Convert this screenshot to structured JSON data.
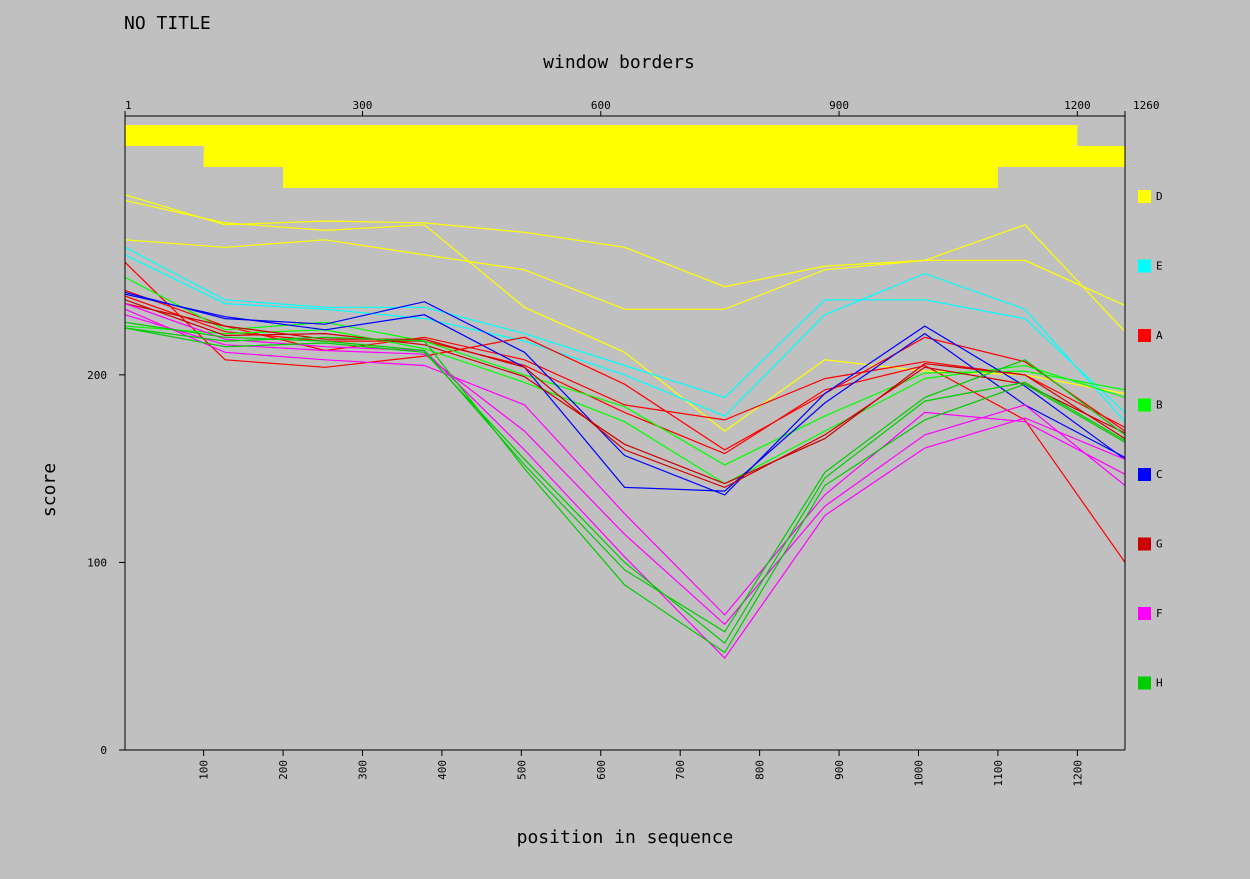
{
  "chart_data": {
    "type": "line",
    "title": "NO TITLE",
    "top_label": "window borders",
    "xlabel": "position in sequence",
    "ylabel": "score",
    "xlim": [
      1,
      1260
    ],
    "ylim": [
      0,
      338
    ],
    "x_ticks": [
      100,
      200,
      300,
      400,
      500,
      600,
      700,
      800,
      900,
      1000,
      1100,
      1200
    ],
    "y_ticks": [
      0,
      100,
      200
    ],
    "top_ticks": [
      1,
      300,
      600,
      900,
      1200,
      1260
    ],
    "window_borders": {
      "color": "#ffff00",
      "rows": [
        [
          [
            1,
            1200
          ]
        ],
        [
          [
            100,
            1260
          ]
        ],
        [
          [
            200,
            1100
          ]
        ]
      ]
    },
    "x": [
      1,
      127,
      253,
      378,
      504,
      630,
      756,
      882,
      1008,
      1134,
      1260
    ],
    "legend": [
      {
        "label": "D",
        "color": "#ffff00"
      },
      {
        "label": "E",
        "color": "#00ffff"
      },
      {
        "label": "A",
        "color": "#ff0000"
      },
      {
        "label": "B",
        "color": "#00ff00"
      },
      {
        "label": "C",
        "color": "#0000ff"
      },
      {
        "label": "G",
        "color": "#cc0000"
      },
      {
        "label": "F",
        "color": "#ff00ff"
      },
      {
        "label": "H",
        "color": "#00cc00"
      }
    ],
    "series": [
      {
        "group": "D",
        "color": "#ffff00",
        "values": [
          296,
          280,
          282,
          281,
          276,
          268,
          247,
          258,
          261,
          261,
          237
        ]
      },
      {
        "group": "D",
        "color": "#ffff00",
        "values": [
          272,
          268,
          272,
          264,
          256,
          235,
          235,
          256,
          261,
          280,
          223
        ]
      },
      {
        "group": "D",
        "color": "#ffff00",
        "values": [
          293,
          281,
          277,
          280,
          236,
          212,
          170,
          208,
          202,
          200,
          190
        ]
      },
      {
        "group": "E",
        "color": "#00ffff",
        "values": [
          268,
          240,
          236,
          236,
          222,
          205,
          188,
          240,
          240,
          230,
          180
        ]
      },
      {
        "group": "E",
        "color": "#00ffff",
        "values": [
          264,
          238,
          235,
          230,
          218,
          200,
          178,
          232,
          254,
          235,
          175
        ]
      },
      {
        "group": "A",
        "color": "#ff0000",
        "values": [
          260,
          208,
          204,
          210,
          220,
          195,
          160,
          190,
          220,
          207,
          170
        ]
      },
      {
        "group": "A",
        "color": "#ff0000",
        "values": [
          245,
          226,
          213,
          220,
          208,
          184,
          176,
          198,
          207,
          200,
          172
        ]
      },
      {
        "group": "A",
        "color": "#ff0000",
        "values": [
          242,
          223,
          218,
          218,
          205,
          180,
          158,
          192,
          205,
          176,
          100
        ]
      },
      {
        "group": "B",
        "color": "#00ff00",
        "values": [
          252,
          224,
          228,
          218,
          200,
          183,
          152,
          178,
          201,
          202,
          192
        ]
      },
      {
        "group": "B",
        "color": "#00ff00",
        "values": [
          226,
          222,
          224,
          214,
          196,
          175,
          142,
          170,
          198,
          205,
          188
        ]
      },
      {
        "group": "C",
        "color": "#0000ff",
        "values": [
          244,
          230,
          227,
          239,
          212,
          157,
          136,
          190,
          226,
          194,
          155
        ]
      },
      {
        "group": "C",
        "color": "#0000ff",
        "values": [
          243,
          231,
          224,
          232,
          204,
          140,
          138,
          185,
          222,
          184,
          156
        ]
      },
      {
        "group": "G",
        "color": "#cc0000",
        "values": [
          240,
          221,
          222,
          216,
          199,
          163,
          142,
          166,
          206,
          200,
          166
        ]
      },
      {
        "group": "G",
        "color": "#cc0000",
        "values": [
          238,
          226,
          219,
          219,
          204,
          160,
          140,
          168,
          204,
          195,
          169
        ]
      },
      {
        "group": "F",
        "color": "#ff00ff",
        "values": [
          235,
          212,
          208,
          205,
          184,
          126,
          72,
          136,
          180,
          175,
          147
        ]
      },
      {
        "group": "F",
        "color": "#ff00ff",
        "values": [
          232,
          216,
          213,
          211,
          170,
          115,
          67,
          130,
          168,
          184,
          141
        ]
      },
      {
        "group": "F",
        "color": "#ff00ff",
        "values": [
          238,
          219,
          215,
          213,
          160,
          103,
          49,
          125,
          161,
          177,
          155
        ]
      },
      {
        "group": "H",
        "color": "#00cc00",
        "values": [
          225,
          218,
          220,
          218,
          150,
          88,
          52,
          141,
          176,
          195,
          164
        ]
      },
      {
        "group": "H",
        "color": "#00cc00",
        "values": [
          225,
          215,
          217,
          212,
          155,
          100,
          57,
          145,
          186,
          196,
          165
        ]
      },
      {
        "group": "H",
        "color": "#00cc00",
        "values": [
          228,
          220,
          218,
          213,
          152,
          96,
          63,
          148,
          188,
          208,
          168
        ]
      }
    ]
  }
}
